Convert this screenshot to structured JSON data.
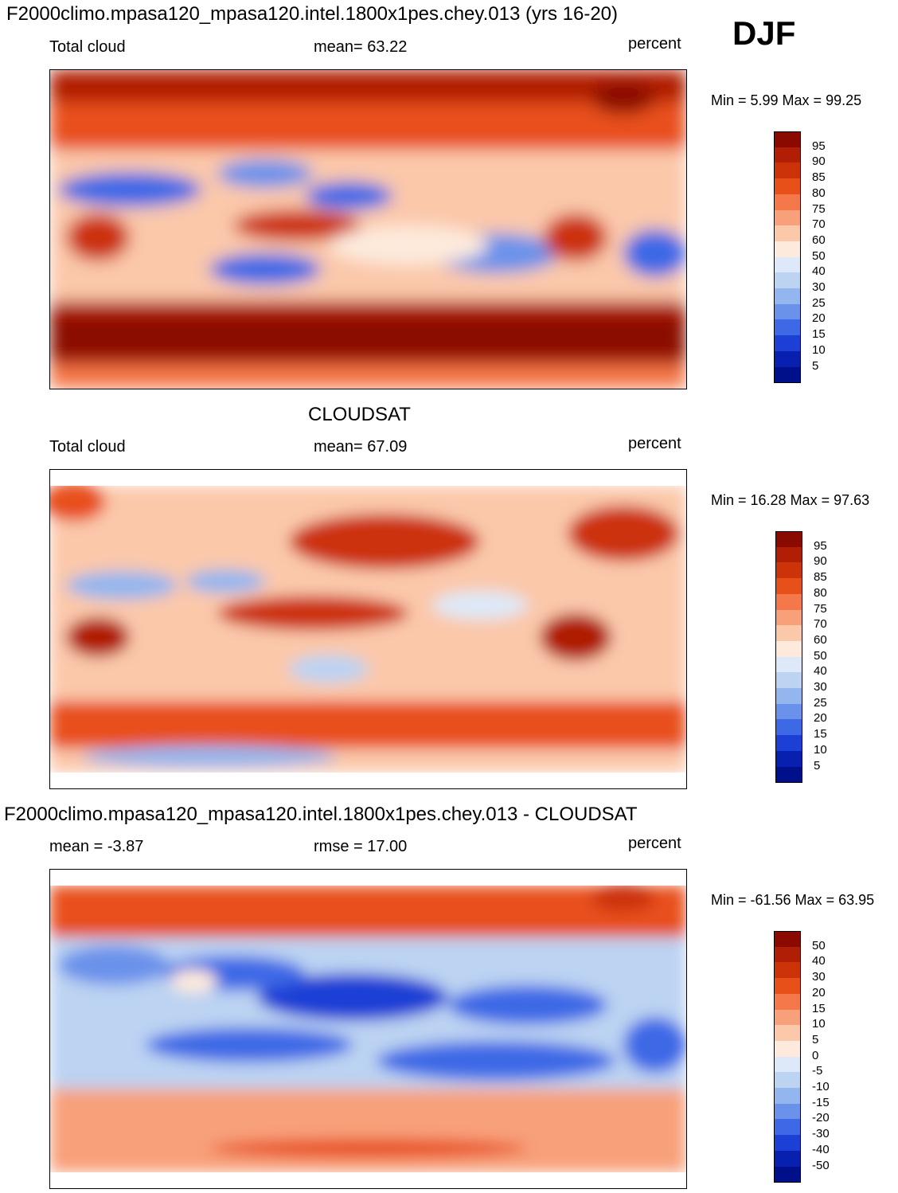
{
  "season": "DJF",
  "panels": [
    {
      "title": "F2000climo.mpasa120_mpasa120.intel.1800x1pes.chey.013 (yrs 16-20)",
      "left_label": "Total cloud",
      "center_label": "mean=  63.22",
      "units": "percent",
      "minmax": "Min =   5.99 Max =  99.25",
      "colorbar_labels": [
        "95",
        "90",
        "85",
        "80",
        "75",
        "70",
        "60",
        "50",
        "40",
        "30",
        "25",
        "20",
        "15",
        "10",
        "5"
      ],
      "colorbar_colors": [
        "#8b0a00",
        "#b01e05",
        "#cc3308",
        "#e8501a",
        "#f4784a",
        "#f8a07a",
        "#fbc8aa",
        "#fdeadc",
        "#dde9f8",
        "#bcd3f2",
        "#94b6ee",
        "#6a92ea",
        "#3e69e6",
        "#1c40d6",
        "#0820b0",
        "#00108a"
      ],
      "map_kind": "model"
    },
    {
      "title": "CLOUDSAT",
      "left_label": "Total cloud",
      "center_label": "mean=  67.09",
      "units": "percent",
      "minmax": "Min =  16.28 Max =  97.63",
      "colorbar_labels": [
        "95",
        "90",
        "85",
        "80",
        "75",
        "70",
        "60",
        "50",
        "40",
        "30",
        "25",
        "20",
        "15",
        "10",
        "5"
      ],
      "colorbar_colors": [
        "#8b0a00",
        "#b01e05",
        "#cc3308",
        "#e8501a",
        "#f4784a",
        "#f8a07a",
        "#fbc8aa",
        "#fdeadc",
        "#dde9f8",
        "#bcd3f2",
        "#94b6ee",
        "#6a92ea",
        "#3e69e6",
        "#1c40d6",
        "#0820b0",
        "#00108a"
      ],
      "map_kind": "obs"
    },
    {
      "title": "F2000climo.mpasa120_mpasa120.intel.1800x1pes.chey.013 - CLOUDSAT",
      "left_label": "mean =  -3.87",
      "center_label": "rmse =  17.00",
      "units": "percent",
      "minmax": "Min = -61.56 Max =  63.95",
      "colorbar_labels": [
        "50",
        "40",
        "30",
        "20",
        "15",
        "10",
        "5",
        "0",
        "-5",
        "-10",
        "-15",
        "-20",
        "-30",
        "-40",
        "-50"
      ],
      "colorbar_colors": [
        "#8b0a00",
        "#b01e05",
        "#cc3308",
        "#e8501a",
        "#f4784a",
        "#f8a07a",
        "#fbc8aa",
        "#fdeadc",
        "#dde9f8",
        "#bcd3f2",
        "#94b6ee",
        "#6a92ea",
        "#3e69e6",
        "#1c40d6",
        "#0820b0",
        "#00108a"
      ],
      "map_kind": "diff"
    }
  ]
}
